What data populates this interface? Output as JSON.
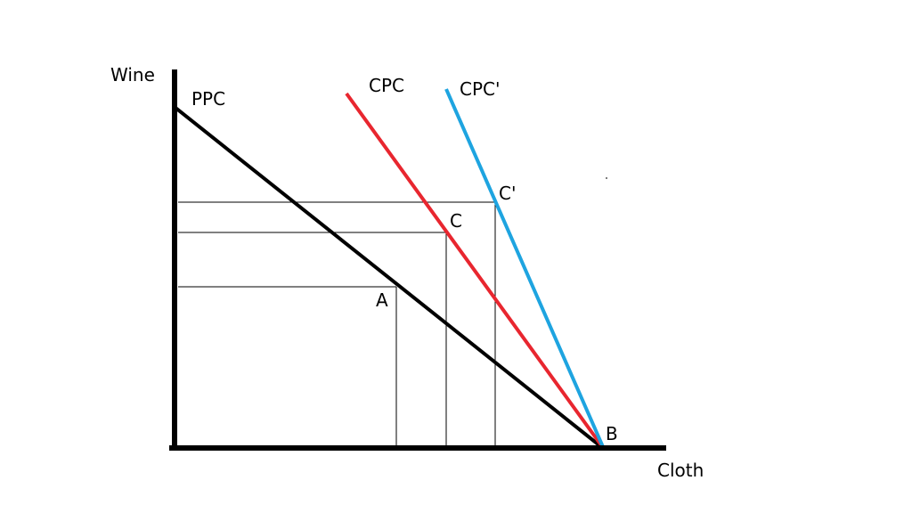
{
  "axes": {
    "y_label": "Wine",
    "x_label": "Cloth"
  },
  "curves": {
    "ppc": {
      "label": "PPC",
      "color": "#000000"
    },
    "cpc": {
      "label": "CPC",
      "color": "#e8262f"
    },
    "cpc_prime": {
      "label": "CPC'",
      "color": "#1ea4e0"
    }
  },
  "points": {
    "a": "A",
    "b": "B",
    "c": "C",
    "c_prime": "C'"
  }
}
